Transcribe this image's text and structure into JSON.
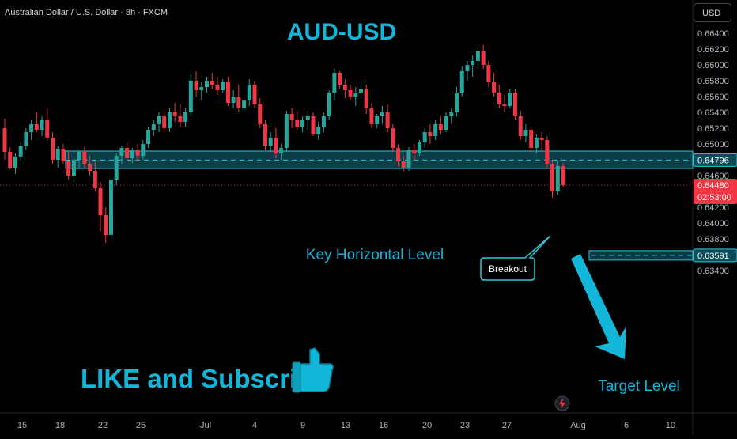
{
  "header": {
    "symbol_title": "Australian Dollar / U.S. Dollar · 8h · FXCM",
    "currency_button": "USD"
  },
  "annotations": {
    "title": "AUD-USD",
    "key_level_label": "Key Horizontal Level",
    "breakout_label": "Breakout",
    "target_label": "Target Level",
    "promo_text": "LIKE and Subscribe"
  },
  "price_tags": {
    "key_level": "0.64796",
    "last_price": "0.64480",
    "countdown": "02:53:00",
    "target": "0.63591"
  },
  "colors": {
    "up": "#26a69a",
    "down": "#f23645",
    "accent": "#12b6d8",
    "zone_fill": "#0d4a55",
    "zone_border": "#2ec7d8"
  },
  "icons": [
    "thumbs-up-icon",
    "lightning-icon"
  ],
  "chart_data": {
    "type": "candlestick",
    "title": "",
    "xlabel": "",
    "ylabel": "",
    "ylim": [
      0.633,
      0.6655
    ],
    "y_ticks": [
      "0.63400",
      "0.63600",
      "0.63800",
      "0.64000",
      "0.64200",
      "0.64400",
      "0.64600",
      "0.64800",
      "0.65000",
      "0.65200",
      "0.65400",
      "0.65600",
      "0.65800",
      "0.66000",
      "0.66200",
      "0.66400"
    ],
    "x_ticks": [
      "15",
      "18",
      "22",
      "25",
      "Jul",
      "4",
      "9",
      "13",
      "16",
      "20",
      "23",
      "27",
      "Aug",
      "6",
      "10"
    ],
    "key_zone": [
      0.6469,
      0.6491
    ],
    "key_level": 0.64796,
    "target_level": 0.63591,
    "last_price": 0.6448,
    "candles": [
      [
        0.652,
        0.6532,
        0.648,
        0.649
      ],
      [
        0.649,
        0.6496,
        0.6468,
        0.647
      ],
      [
        0.647,
        0.6488,
        0.6462,
        0.6484
      ],
      [
        0.6484,
        0.6502,
        0.6478,
        0.6498
      ],
      [
        0.6498,
        0.652,
        0.6492,
        0.6515
      ],
      [
        0.6515,
        0.653,
        0.6505,
        0.6525
      ],
      [
        0.6525,
        0.654,
        0.6515,
        0.6518
      ],
      [
        0.6518,
        0.6535,
        0.651,
        0.653
      ],
      [
        0.653,
        0.6545,
        0.6505,
        0.6508
      ],
      [
        0.6508,
        0.6515,
        0.6475,
        0.648
      ],
      [
        0.648,
        0.6498,
        0.647,
        0.6494
      ],
      [
        0.6494,
        0.65,
        0.6475,
        0.6478
      ],
      [
        0.6478,
        0.649,
        0.6455,
        0.646
      ],
      [
        0.646,
        0.6485,
        0.6452,
        0.648
      ],
      [
        0.648,
        0.6492,
        0.6468,
        0.649
      ],
      [
        0.649,
        0.6496,
        0.647,
        0.6475
      ],
      [
        0.6475,
        0.6485,
        0.646,
        0.6466
      ],
      [
        0.6466,
        0.6478,
        0.644,
        0.6444
      ],
      [
        0.6444,
        0.6452,
        0.639,
        0.641
      ],
      [
        0.641,
        0.642,
        0.6375,
        0.6385
      ],
      [
        0.6385,
        0.646,
        0.638,
        0.6455
      ],
      [
        0.6455,
        0.6488,
        0.6448,
        0.6485
      ],
      [
        0.6485,
        0.6498,
        0.6475,
        0.6495
      ],
      [
        0.6495,
        0.6502,
        0.6478,
        0.6482
      ],
      [
        0.6482,
        0.6495,
        0.6476,
        0.6492
      ],
      [
        0.6492,
        0.65,
        0.6478,
        0.6485
      ],
      [
        0.6485,
        0.6505,
        0.648,
        0.65
      ],
      [
        0.65,
        0.6522,
        0.6495,
        0.6518
      ],
      [
        0.6518,
        0.653,
        0.651,
        0.6525
      ],
      [
        0.6525,
        0.654,
        0.6515,
        0.6535
      ],
      [
        0.6535,
        0.6542,
        0.6515,
        0.652
      ],
      [
        0.652,
        0.6545,
        0.6515,
        0.654
      ],
      [
        0.654,
        0.6552,
        0.6528,
        0.6535
      ],
      [
        0.6535,
        0.655,
        0.6522,
        0.6528
      ],
      [
        0.6528,
        0.6545,
        0.6522,
        0.654
      ],
      [
        0.654,
        0.6588,
        0.6535,
        0.658
      ],
      [
        0.658,
        0.6592,
        0.656,
        0.6568
      ],
      [
        0.6568,
        0.6578,
        0.6555,
        0.6572
      ],
      [
        0.6572,
        0.6585,
        0.6565,
        0.658
      ],
      [
        0.658,
        0.659,
        0.657,
        0.6575
      ],
      [
        0.6575,
        0.6585,
        0.6562,
        0.6568
      ],
      [
        0.6568,
        0.6582,
        0.6565,
        0.6578
      ],
      [
        0.6578,
        0.6585,
        0.6548,
        0.6552
      ],
      [
        0.6552,
        0.6568,
        0.6545,
        0.656
      ],
      [
        0.656,
        0.6575,
        0.654,
        0.6545
      ],
      [
        0.6545,
        0.656,
        0.654,
        0.6555
      ],
      [
        0.6555,
        0.6582,
        0.6548,
        0.6575
      ],
      [
        0.6575,
        0.658,
        0.6545,
        0.655
      ],
      [
        0.655,
        0.6558,
        0.652,
        0.6525
      ],
      [
        0.6525,
        0.653,
        0.6492,
        0.6498
      ],
      [
        0.6498,
        0.6515,
        0.649,
        0.6508
      ],
      [
        0.6508,
        0.652,
        0.6482,
        0.6488
      ],
      [
        0.6488,
        0.65,
        0.648,
        0.6495
      ],
      [
        0.6495,
        0.6542,
        0.649,
        0.6538
      ],
      [
        0.6538,
        0.6545,
        0.652,
        0.653
      ],
      [
        0.653,
        0.6542,
        0.6518,
        0.6522
      ],
      [
        0.6522,
        0.6535,
        0.6515,
        0.653
      ],
      [
        0.653,
        0.6542,
        0.6518,
        0.6535
      ],
      [
        0.6535,
        0.654,
        0.651,
        0.6512
      ],
      [
        0.6512,
        0.6528,
        0.6505,
        0.6522
      ],
      [
        0.6522,
        0.654,
        0.6515,
        0.6535
      ],
      [
        0.6535,
        0.6568,
        0.653,
        0.6565
      ],
      [
        0.6565,
        0.6595,
        0.6555,
        0.659
      ],
      [
        0.659,
        0.6592,
        0.657,
        0.6575
      ],
      [
        0.6575,
        0.6582,
        0.6558,
        0.6568
      ],
      [
        0.6568,
        0.6575,
        0.6555,
        0.656
      ],
      [
        0.656,
        0.6572,
        0.6548,
        0.6565
      ],
      [
        0.6565,
        0.658,
        0.6558,
        0.657
      ],
      [
        0.657,
        0.6575,
        0.6538,
        0.6545
      ],
      [
        0.6545,
        0.6552,
        0.652,
        0.6525
      ],
      [
        0.6525,
        0.6538,
        0.652,
        0.6535
      ],
      [
        0.6535,
        0.6548,
        0.6525,
        0.654
      ],
      [
        0.654,
        0.655,
        0.6515,
        0.652
      ],
      [
        0.652,
        0.6525,
        0.649,
        0.6495
      ],
      [
        0.6495,
        0.65,
        0.6472,
        0.6478
      ],
      [
        0.6478,
        0.6485,
        0.6465,
        0.647
      ],
      [
        0.647,
        0.6496,
        0.6466,
        0.6492
      ],
      [
        0.6492,
        0.65,
        0.648,
        0.6488
      ],
      [
        0.6488,
        0.6505,
        0.6485,
        0.6502
      ],
      [
        0.6502,
        0.652,
        0.6495,
        0.6515
      ],
      [
        0.6515,
        0.6525,
        0.65,
        0.651
      ],
      [
        0.651,
        0.653,
        0.6505,
        0.6525
      ],
      [
        0.6525,
        0.6535,
        0.6512,
        0.6518
      ],
      [
        0.6518,
        0.654,
        0.6515,
        0.6535
      ],
      [
        0.6535,
        0.6545,
        0.6525,
        0.654
      ],
      [
        0.654,
        0.6572,
        0.6535,
        0.6565
      ],
      [
        0.6565,
        0.6598,
        0.656,
        0.6592
      ],
      [
        0.6592,
        0.6605,
        0.658,
        0.66
      ],
      [
        0.66,
        0.6612,
        0.6585,
        0.6605
      ],
      [
        0.6605,
        0.6622,
        0.6595,
        0.6618
      ],
      [
        0.6618,
        0.6625,
        0.6595,
        0.66
      ],
      [
        0.66,
        0.6605,
        0.6572,
        0.6578
      ],
      [
        0.6578,
        0.659,
        0.656,
        0.6565
      ],
      [
        0.6565,
        0.6575,
        0.6545,
        0.655
      ],
      [
        0.655,
        0.6562,
        0.654,
        0.6548
      ],
      [
        0.6548,
        0.657,
        0.6545,
        0.6565
      ],
      [
        0.6565,
        0.657,
        0.653,
        0.6535
      ],
      [
        0.6535,
        0.6542,
        0.6505,
        0.651
      ],
      [
        0.651,
        0.6525,
        0.6502,
        0.6518
      ],
      [
        0.6518,
        0.6522,
        0.649,
        0.6495
      ],
      [
        0.6495,
        0.6512,
        0.6488,
        0.6508
      ],
      [
        0.6508,
        0.6515,
        0.6492,
        0.6505
      ],
      [
        0.6505,
        0.651,
        0.6468,
        0.6475
      ],
      [
        0.6475,
        0.648,
        0.6432,
        0.644
      ],
      [
        0.644,
        0.6478,
        0.6436,
        0.6472
      ],
      [
        0.6472,
        0.6476,
        0.6445,
        0.6448
      ]
    ]
  }
}
